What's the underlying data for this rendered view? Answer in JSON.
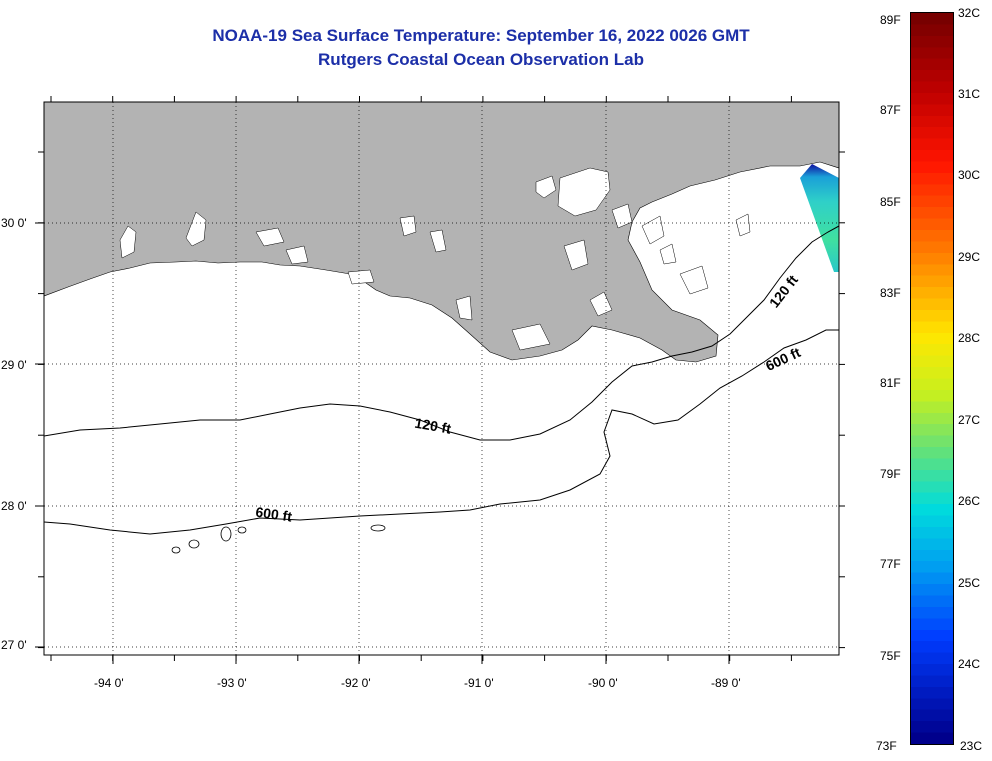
{
  "title": {
    "line1": "NOAA-19 Sea Surface Temperature:  September 16, 2022 0026 GMT",
    "line2": "Rutgers Coastal Ocean Observation Lab"
  },
  "y_axis": {
    "labels": [
      "30 0'",
      "29 0'",
      "28 0'",
      "27 0'"
    ]
  },
  "x_axis": {
    "labels": [
      "-94 0'",
      "-93 0'",
      "-92 0'",
      "-91 0'",
      "-90 0'",
      "-89 0'"
    ]
  },
  "contours": {
    "c120_left": "120 ft",
    "c120_right": "120 ft",
    "c600_left": "600 ft",
    "c600_right": "600 ft"
  },
  "colorbar": {
    "fahrenheit": [
      "89F",
      "87F",
      "85F",
      "83F",
      "81F",
      "79F",
      "77F",
      "75F",
      "73F"
    ],
    "celsius": [
      "32C",
      "31C",
      "30C",
      "29C",
      "28C",
      "27C",
      "26C",
      "25C",
      "24C",
      "23C"
    ]
  },
  "colors": {
    "title": "#1c2fa8",
    "land": "#b3b3b3",
    "ocean": "#ffffff"
  }
}
